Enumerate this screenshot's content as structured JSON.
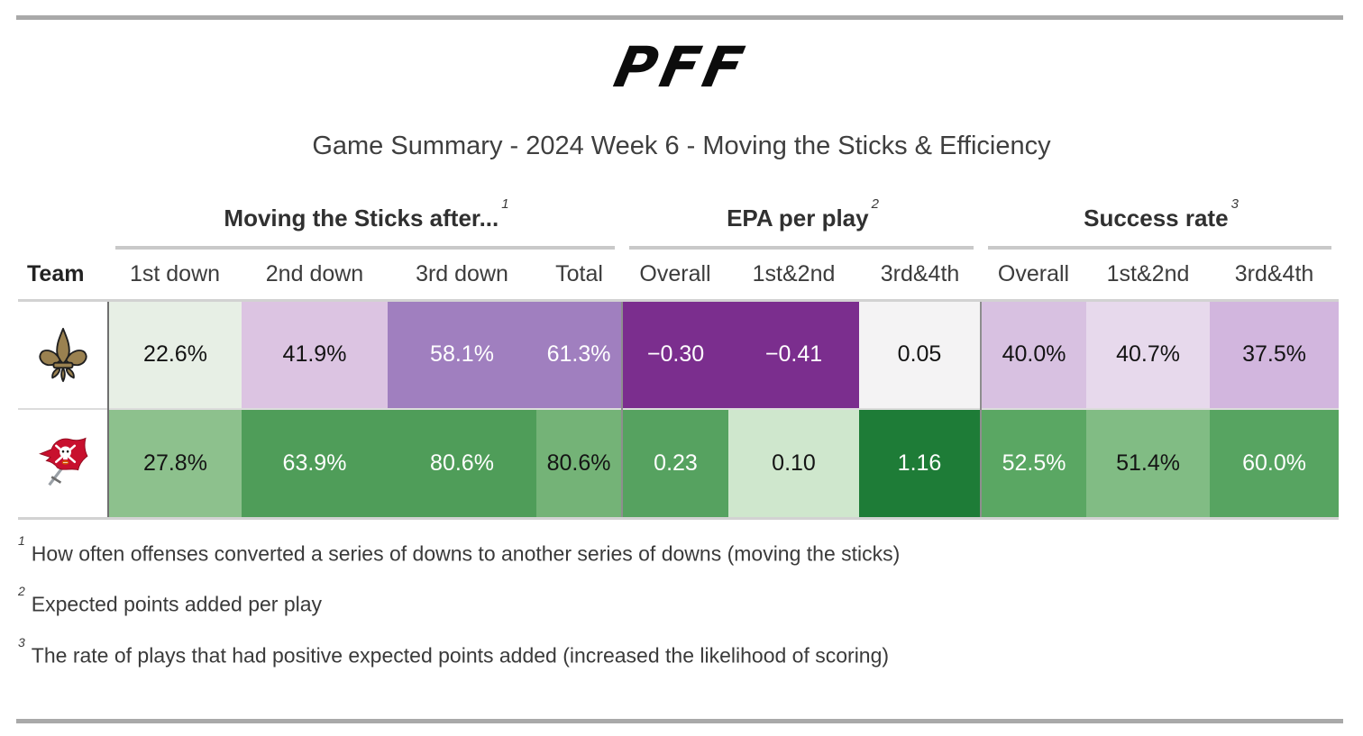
{
  "brand": {
    "logo_text": "PFF",
    "logo_color": "#0c0c0c"
  },
  "title": "Game Summary - 2024 Week 6 - Moving the Sticks & Efficiency",
  "table": {
    "groups": [
      {
        "label": "Moving the Sticks after...",
        "sup": "1",
        "span": 4
      },
      {
        "label": "EPA per play",
        "sup": "2",
        "span": 3
      },
      {
        "label": "Success rate",
        "sup": "3",
        "span": 3
      }
    ],
    "columns": [
      "Team",
      "1st down",
      "2nd down",
      "3rd down",
      "Total",
      "Overall",
      "1st&2nd",
      "3rd&4th",
      "Overall",
      "1st&2nd",
      "3rd&4th"
    ],
    "rows": [
      {
        "team": "New Orleans Saints",
        "logo_template": "logo-saints",
        "cells": [
          {
            "value": "22.6%",
            "bg": "#e7efe5",
            "fg": "#141414"
          },
          {
            "value": "41.9%",
            "bg": "#dcc4e2",
            "fg": "#141414"
          },
          {
            "value": "58.1%",
            "bg": "#a07fbf",
            "fg": "#ffffff"
          },
          {
            "value": "61.3%",
            "bg": "#a07fbf",
            "fg": "#ffffff"
          },
          {
            "value": "−0.30",
            "bg": "#7b2e8e",
            "fg": "#ffffff"
          },
          {
            "value": "−0.41",
            "bg": "#7b2e8e",
            "fg": "#ffffff"
          },
          {
            "value": "0.05",
            "bg": "#f4f3f4",
            "fg": "#141414"
          },
          {
            "value": "40.0%",
            "bg": "#d8c1e1",
            "fg": "#141414"
          },
          {
            "value": "40.7%",
            "bg": "#e7d9ec",
            "fg": "#141414"
          },
          {
            "value": "37.5%",
            "bg": "#d2b6de",
            "fg": "#141414"
          }
        ]
      },
      {
        "team": "Tampa Bay Buccaneers",
        "logo_template": "logo-bucs",
        "cells": [
          {
            "value": "27.8%",
            "bg": "#8dc18d",
            "fg": "#141414"
          },
          {
            "value": "63.9%",
            "bg": "#4f9d59",
            "fg": "#ffffff"
          },
          {
            "value": "80.6%",
            "bg": "#4f9d59",
            "fg": "#ffffff"
          },
          {
            "value": "80.6%",
            "bg": "#74b377",
            "fg": "#141414"
          },
          {
            "value": "0.23",
            "bg": "#56a260",
            "fg": "#ffffff"
          },
          {
            "value": "0.10",
            "bg": "#cfe7cd",
            "fg": "#141414"
          },
          {
            "value": "1.16",
            "bg": "#1e7c37",
            "fg": "#ffffff"
          },
          {
            "value": "52.5%",
            "bg": "#5aa763",
            "fg": "#ffffff"
          },
          {
            "value": "51.4%",
            "bg": "#81bc84",
            "fg": "#141414"
          },
          {
            "value": "60.0%",
            "bg": "#57a461",
            "fg": "#ffffff"
          }
        ]
      }
    ]
  },
  "footnotes": [
    {
      "sup": "1",
      "text": "How often offenses converted a series of downs to another series of downs (moving the sticks)"
    },
    {
      "sup": "2",
      "text": "Expected points added per play"
    },
    {
      "sup": "3",
      "text": "The rate of plays that had positive expected points added (increased the likelihood of scoring)"
    }
  ],
  "chart_data": {
    "type": "table",
    "title": "Game Summary - 2024 Week 6 - Moving the Sticks & Efficiency",
    "column_groups": [
      {
        "label": "Moving the Sticks after...",
        "footnote": 1,
        "columns": [
          "1st down",
          "2nd down",
          "3rd down",
          "Total"
        ]
      },
      {
        "label": "EPA per play",
        "footnote": 2,
        "columns": [
          "Overall",
          "1st&2nd",
          "3rd&4th"
        ]
      },
      {
        "label": "Success rate",
        "footnote": 3,
        "columns": [
          "Overall",
          "1st&2nd",
          "3rd&4th"
        ]
      }
    ],
    "rows": [
      {
        "team": "New Orleans Saints",
        "moving_the_sticks": {
          "1st_down_pct": 22.6,
          "2nd_down_pct": 41.9,
          "3rd_down_pct": 58.1,
          "total_pct": 61.3
        },
        "epa_per_play": {
          "overall": -0.3,
          "1st_and_2nd": -0.41,
          "3rd_and_4th": 0.05
        },
        "success_rate": {
          "overall_pct": 40.0,
          "1st_and_2nd_pct": 40.7,
          "3rd_and_4th_pct": 37.5
        }
      },
      {
        "team": "Tampa Bay Buccaneers",
        "moving_the_sticks": {
          "1st_down_pct": 27.8,
          "2nd_down_pct": 63.9,
          "3rd_down_pct": 80.6,
          "total_pct": 80.6
        },
        "epa_per_play": {
          "overall": 0.23,
          "1st_and_2nd": 0.1,
          "3rd_and_4th": 1.16
        },
        "success_rate": {
          "overall_pct": 52.5,
          "1st_and_2nd_pct": 51.4,
          "3rd_and_4th_pct": 60.0
        }
      }
    ],
    "color_scale": "green = better, purple = worse",
    "legend_position": "none",
    "grid": false
  }
}
